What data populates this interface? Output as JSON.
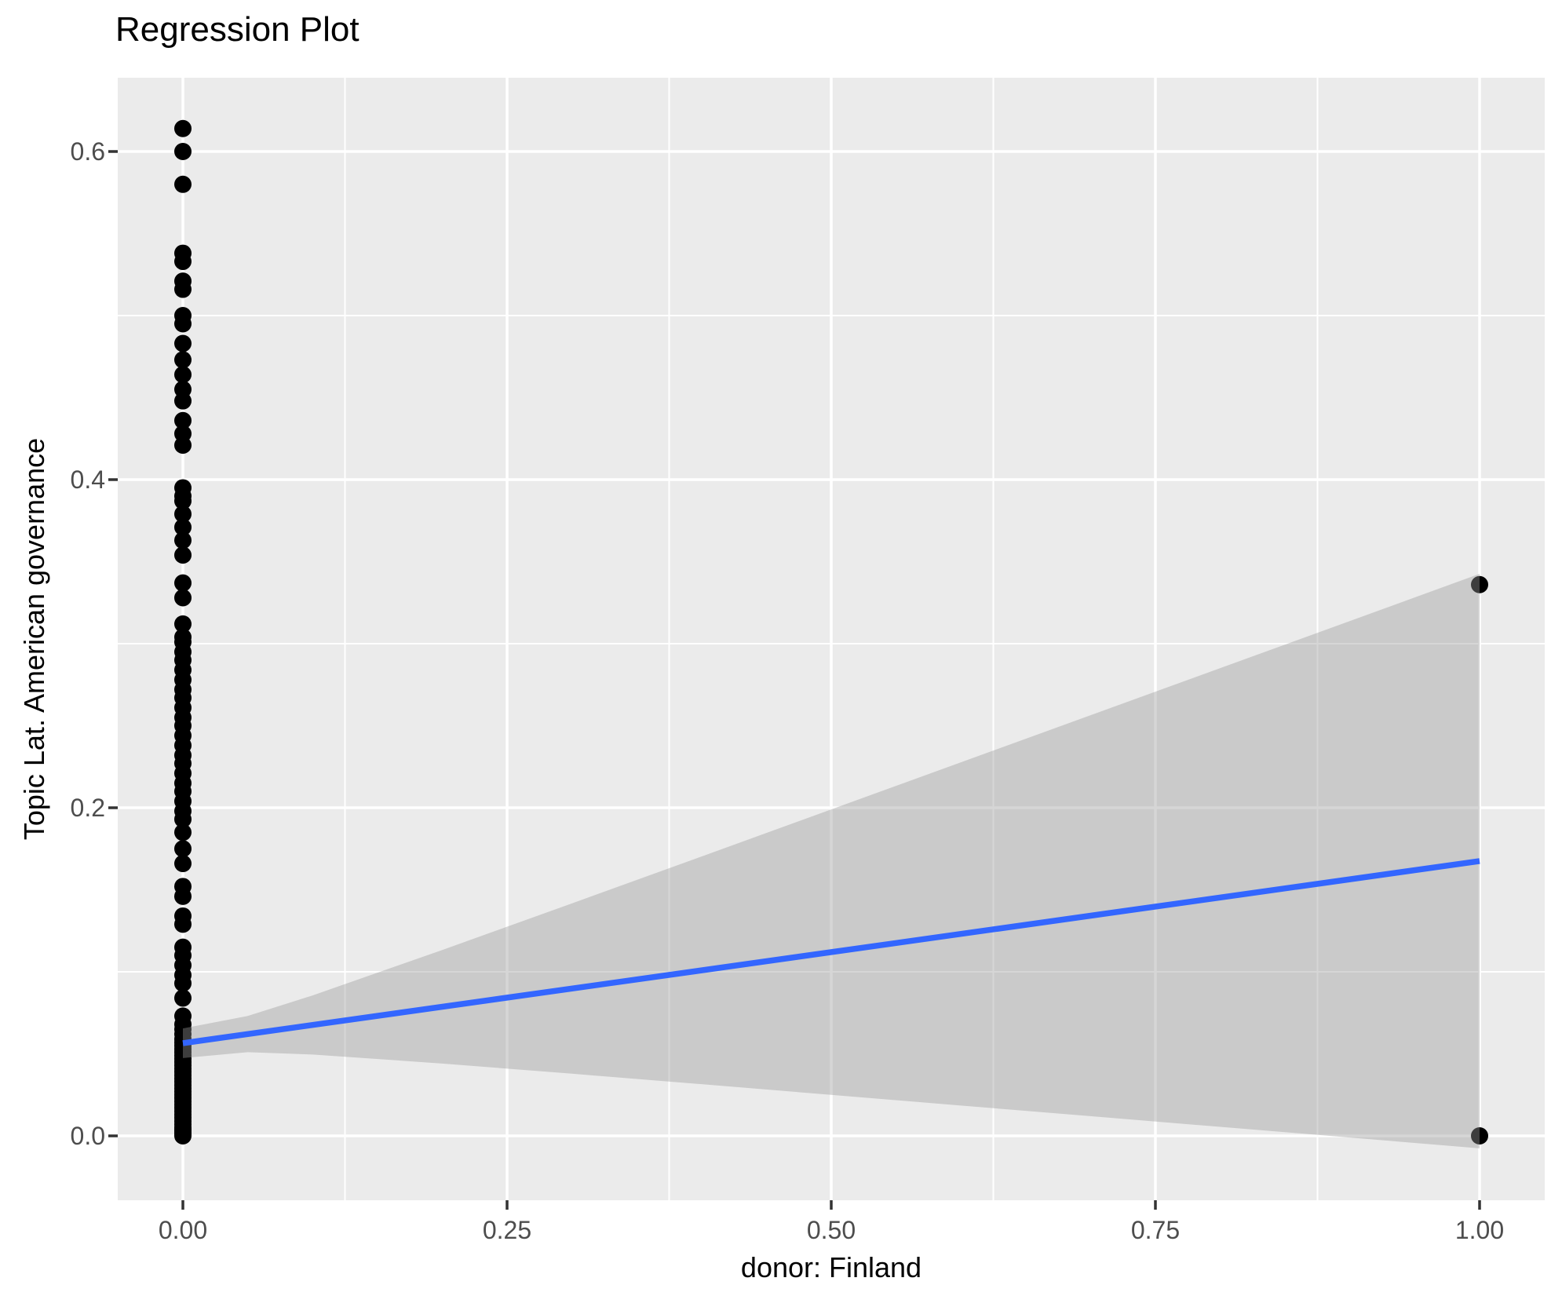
{
  "title": "Regression Plot",
  "colors": {
    "background": "#FFFFFF",
    "panel_bg": "#EBEBEB",
    "grid": "#FFFFFF",
    "point": "#000000",
    "regression_line": "#3366FF",
    "ci_band": "#999999",
    "ci_band_opacity": 0.4,
    "tick_label": "#4D4D4D",
    "tick_mark": "#333333",
    "axis_title": "#000000"
  },
  "chart_data": {
    "type": "scatter",
    "title": "Regression Plot",
    "xlabel": "donor: Finland",
    "ylabel": "Topic Lat. American governance",
    "legend": false,
    "grid": true,
    "xlim": [
      -0.05,
      1.05
    ],
    "ylim": [
      -0.039,
      0.645
    ],
    "x_ticks": {
      "values": [
        0.0,
        0.25,
        0.5,
        0.75,
        1.0
      ],
      "labels": [
        "0.00",
        "0.25",
        "0.50",
        "0.75",
        "1.00"
      ]
    },
    "y_ticks": {
      "values": [
        0.0,
        0.2,
        0.4,
        0.6
      ],
      "labels": [
        "0.0",
        "0.2",
        "0.4",
        "0.6"
      ]
    },
    "x_minor_ticks": [
      0.125,
      0.375,
      0.625,
      0.875
    ],
    "y_minor_ticks": [
      0.1,
      0.3,
      0.5
    ],
    "series": [
      {
        "name": "observations",
        "points": [
          [
            0,
            0.614
          ],
          [
            0,
            0.6
          ],
          [
            0,
            0.58
          ],
          [
            0,
            0.538
          ],
          [
            0,
            0.533
          ],
          [
            0,
            0.521
          ],
          [
            0,
            0.516
          ],
          [
            0,
            0.5
          ],
          [
            0,
            0.495
          ],
          [
            0,
            0.483
          ],
          [
            0,
            0.473
          ],
          [
            0,
            0.464
          ],
          [
            0,
            0.455
          ],
          [
            0,
            0.448
          ],
          [
            0,
            0.436
          ],
          [
            0,
            0.428
          ],
          [
            0,
            0.421
          ],
          [
            0,
            0.395
          ],
          [
            0,
            0.39
          ],
          [
            0,
            0.387
          ],
          [
            0,
            0.379
          ],
          [
            0,
            0.371
          ],
          [
            0,
            0.363
          ],
          [
            0,
            0.354
          ],
          [
            0,
            0.337
          ],
          [
            0,
            0.328
          ],
          [
            0,
            0.312
          ],
          [
            0,
            0.304
          ],
          [
            0,
            0.301
          ],
          [
            0,
            0.295
          ],
          [
            0,
            0.29
          ],
          [
            0,
            0.284
          ],
          [
            0,
            0.278
          ],
          [
            0,
            0.272
          ],
          [
            0,
            0.267
          ],
          [
            0,
            0.261
          ],
          [
            0,
            0.255
          ],
          [
            0,
            0.25
          ],
          [
            0,
            0.244
          ],
          [
            0,
            0.238
          ],
          [
            0,
            0.232
          ],
          [
            0,
            0.227
          ],
          [
            0,
            0.221
          ],
          [
            0,
            0.215
          ],
          [
            0,
            0.21
          ],
          [
            0,
            0.204
          ],
          [
            0,
            0.198
          ],
          [
            0,
            0.193
          ],
          [
            0,
            0.185
          ],
          [
            0,
            0.175
          ],
          [
            0,
            0.166
          ],
          [
            0,
            0.152
          ],
          [
            0,
            0.146
          ],
          [
            0,
            0.134
          ],
          [
            0,
            0.129
          ],
          [
            0,
            0.115
          ],
          [
            0,
            0.11
          ],
          [
            0,
            0.104
          ],
          [
            0,
            0.098
          ],
          [
            0,
            0.093
          ],
          [
            0,
            0.084
          ],
          [
            0,
            0.073
          ],
          [
            0,
            0.068
          ],
          [
            0,
            0.065
          ],
          [
            0,
            0.062
          ],
          [
            0,
            0.059
          ],
          [
            0,
            0.057
          ],
          [
            0,
            0.055
          ],
          [
            0,
            0.053
          ],
          [
            0,
            0.051
          ],
          [
            0,
            0.049
          ],
          [
            0,
            0.047
          ],
          [
            0,
            0.045
          ],
          [
            0,
            0.043
          ],
          [
            0,
            0.041
          ],
          [
            0,
            0.039
          ],
          [
            0,
            0.037
          ],
          [
            0,
            0.035
          ],
          [
            0,
            0.033
          ],
          [
            0,
            0.031
          ],
          [
            0,
            0.029
          ],
          [
            0,
            0.027
          ],
          [
            0,
            0.025
          ],
          [
            0,
            0.023
          ],
          [
            0,
            0.021
          ],
          [
            0,
            0.019
          ],
          [
            0,
            0.017
          ],
          [
            0,
            0.015
          ],
          [
            0,
            0.013
          ],
          [
            0,
            0.011
          ],
          [
            0,
            0.009
          ],
          [
            0,
            0.007
          ],
          [
            0,
            0.005
          ],
          [
            0,
            0.004
          ],
          [
            0,
            0.003
          ],
          [
            0,
            0.002
          ],
          [
            0,
            0.001
          ],
          [
            0,
            0.0
          ],
          [
            1,
            0.336
          ],
          [
            1,
            0.0
          ]
        ]
      }
    ],
    "regression_line": {
      "x": [
        0,
        1
      ],
      "y": [
        0.0565,
        0.1675
      ]
    },
    "ci_band": {
      "x": [
        0,
        0.05,
        0.1,
        0.2,
        0.3,
        0.4,
        0.5,
        0.6,
        0.7,
        0.8,
        0.9,
        1.0
      ],
      "upper": [
        0.0655,
        0.0731,
        0.0856,
        0.1133,
        0.1417,
        0.1703,
        0.199,
        0.2277,
        0.2564,
        0.2851,
        0.3138,
        0.3426
      ],
      "lower": [
        0.0474,
        0.051,
        0.0496,
        0.0441,
        0.0379,
        0.0315,
        0.025,
        0.0185,
        0.012,
        0.0055,
        -0.001,
        -0.0076
      ]
    }
  }
}
